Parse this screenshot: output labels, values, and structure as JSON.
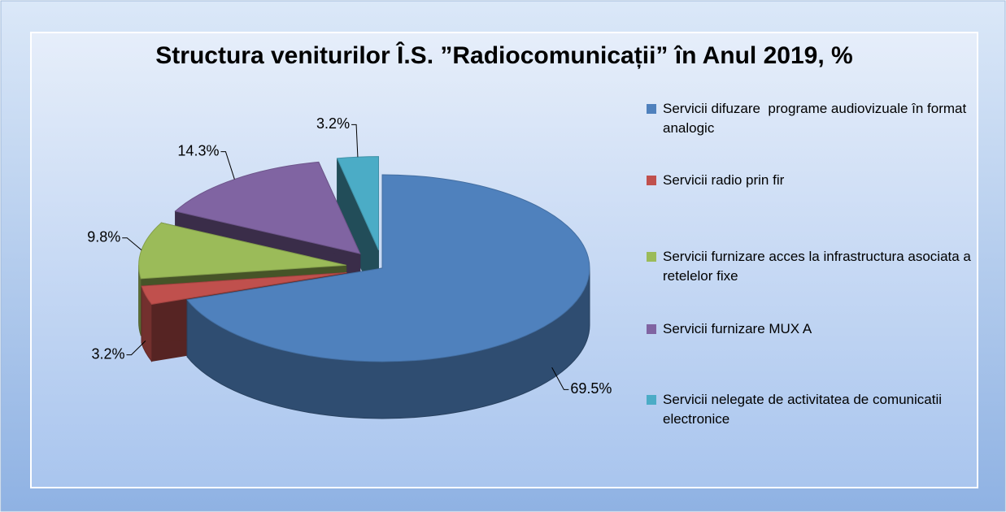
{
  "chart_data": {
    "type": "pie",
    "title": "Structura veniturilor Î.S. ”Radiocomunicații” în Anul 2019, %",
    "categories": [
      "Servicii difuzare  programe audiovizuale în format analogic",
      "Servicii radio prin fir",
      "Servicii furnizare acces la infrastructura asociata a retelelor fixe",
      "Servicii furnizare MUX A",
      "Servicii nelegate de activitatea de comunicatii electronice"
    ],
    "values": [
      69.5,
      3.2,
      9.8,
      14.3,
      3.2
    ],
    "value_labels": [
      "69.5%",
      "3.2%",
      "9.8%",
      "14.3%",
      "3.2%"
    ],
    "colors": [
      "#4f81bd",
      "#c0504d",
      "#9bbb59",
      "#8064a2",
      "#4bacc6"
    ],
    "legend": "right"
  }
}
